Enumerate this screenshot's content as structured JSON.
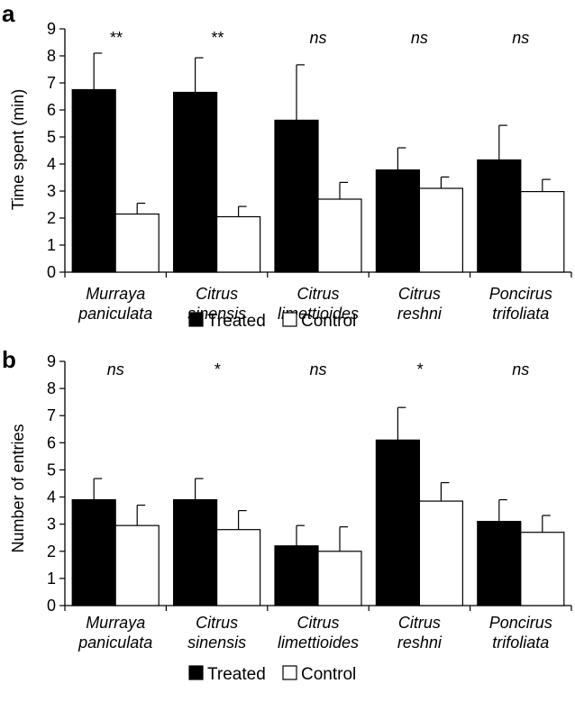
{
  "chart_data": [
    {
      "type": "bar",
      "panel": "a",
      "ylabel": "Time spent (min)",
      "ylim": [
        0,
        9
      ],
      "yticks": [
        "0",
        "1",
        "2",
        "3",
        "4",
        "5",
        "6",
        "7",
        "8",
        "9"
      ],
      "categories": [
        [
          "Murraya",
          "paniculata"
        ],
        [
          "Citrus",
          "sinensis"
        ],
        [
          "Citrus",
          "limettioides"
        ],
        [
          "Citrus",
          "reshni"
        ],
        [
          "Poncirus",
          "trifoliata"
        ]
      ],
      "series": [
        {
          "name": "Treated",
          "color": "#000000",
          "values": [
            6.75,
            6.65,
            5.62,
            3.78,
            4.15
          ],
          "errors": [
            1.35,
            1.28,
            2.05,
            0.82,
            1.28
          ]
        },
        {
          "name": "Control",
          "color": "#ffffff",
          "values": [
            2.15,
            2.05,
            2.7,
            3.1,
            2.98
          ],
          "errors": [
            0.4,
            0.38,
            0.62,
            0.42,
            0.45
          ]
        }
      ],
      "significance": [
        "**",
        "**",
        "ns",
        "ns",
        "ns"
      ],
      "legend": [
        "Treated",
        "Control"
      ],
      "legend_position": "bottom-center"
    },
    {
      "type": "bar",
      "panel": "b",
      "ylabel": "Number of entries",
      "ylim": [
        0,
        9
      ],
      "yticks": [
        "0",
        "1",
        "2",
        "3",
        "4",
        "5",
        "6",
        "7",
        "8",
        "9"
      ],
      "categories": [
        [
          "Murraya",
          "paniculata"
        ],
        [
          "Citrus",
          "sinensis"
        ],
        [
          "Citrus",
          "limettioides"
        ],
        [
          "Citrus",
          "reshni"
        ],
        [
          "Poncirus",
          "trifoliata"
        ]
      ],
      "series": [
        {
          "name": "Treated",
          "color": "#000000",
          "values": [
            3.9,
            3.9,
            2.2,
            6.1,
            3.1
          ],
          "errors": [
            0.78,
            0.78,
            0.75,
            1.2,
            0.8
          ]
        },
        {
          "name": "Control",
          "color": "#ffffff",
          "values": [
            2.95,
            2.8,
            2.0,
            3.85,
            2.7
          ],
          "errors": [
            0.75,
            0.7,
            0.9,
            0.68,
            0.62
          ]
        }
      ],
      "significance": [
        "ns",
        "*",
        "ns",
        "*",
        "ns"
      ],
      "legend": [
        "Treated",
        "Control"
      ],
      "legend_position": "bottom-center"
    }
  ]
}
